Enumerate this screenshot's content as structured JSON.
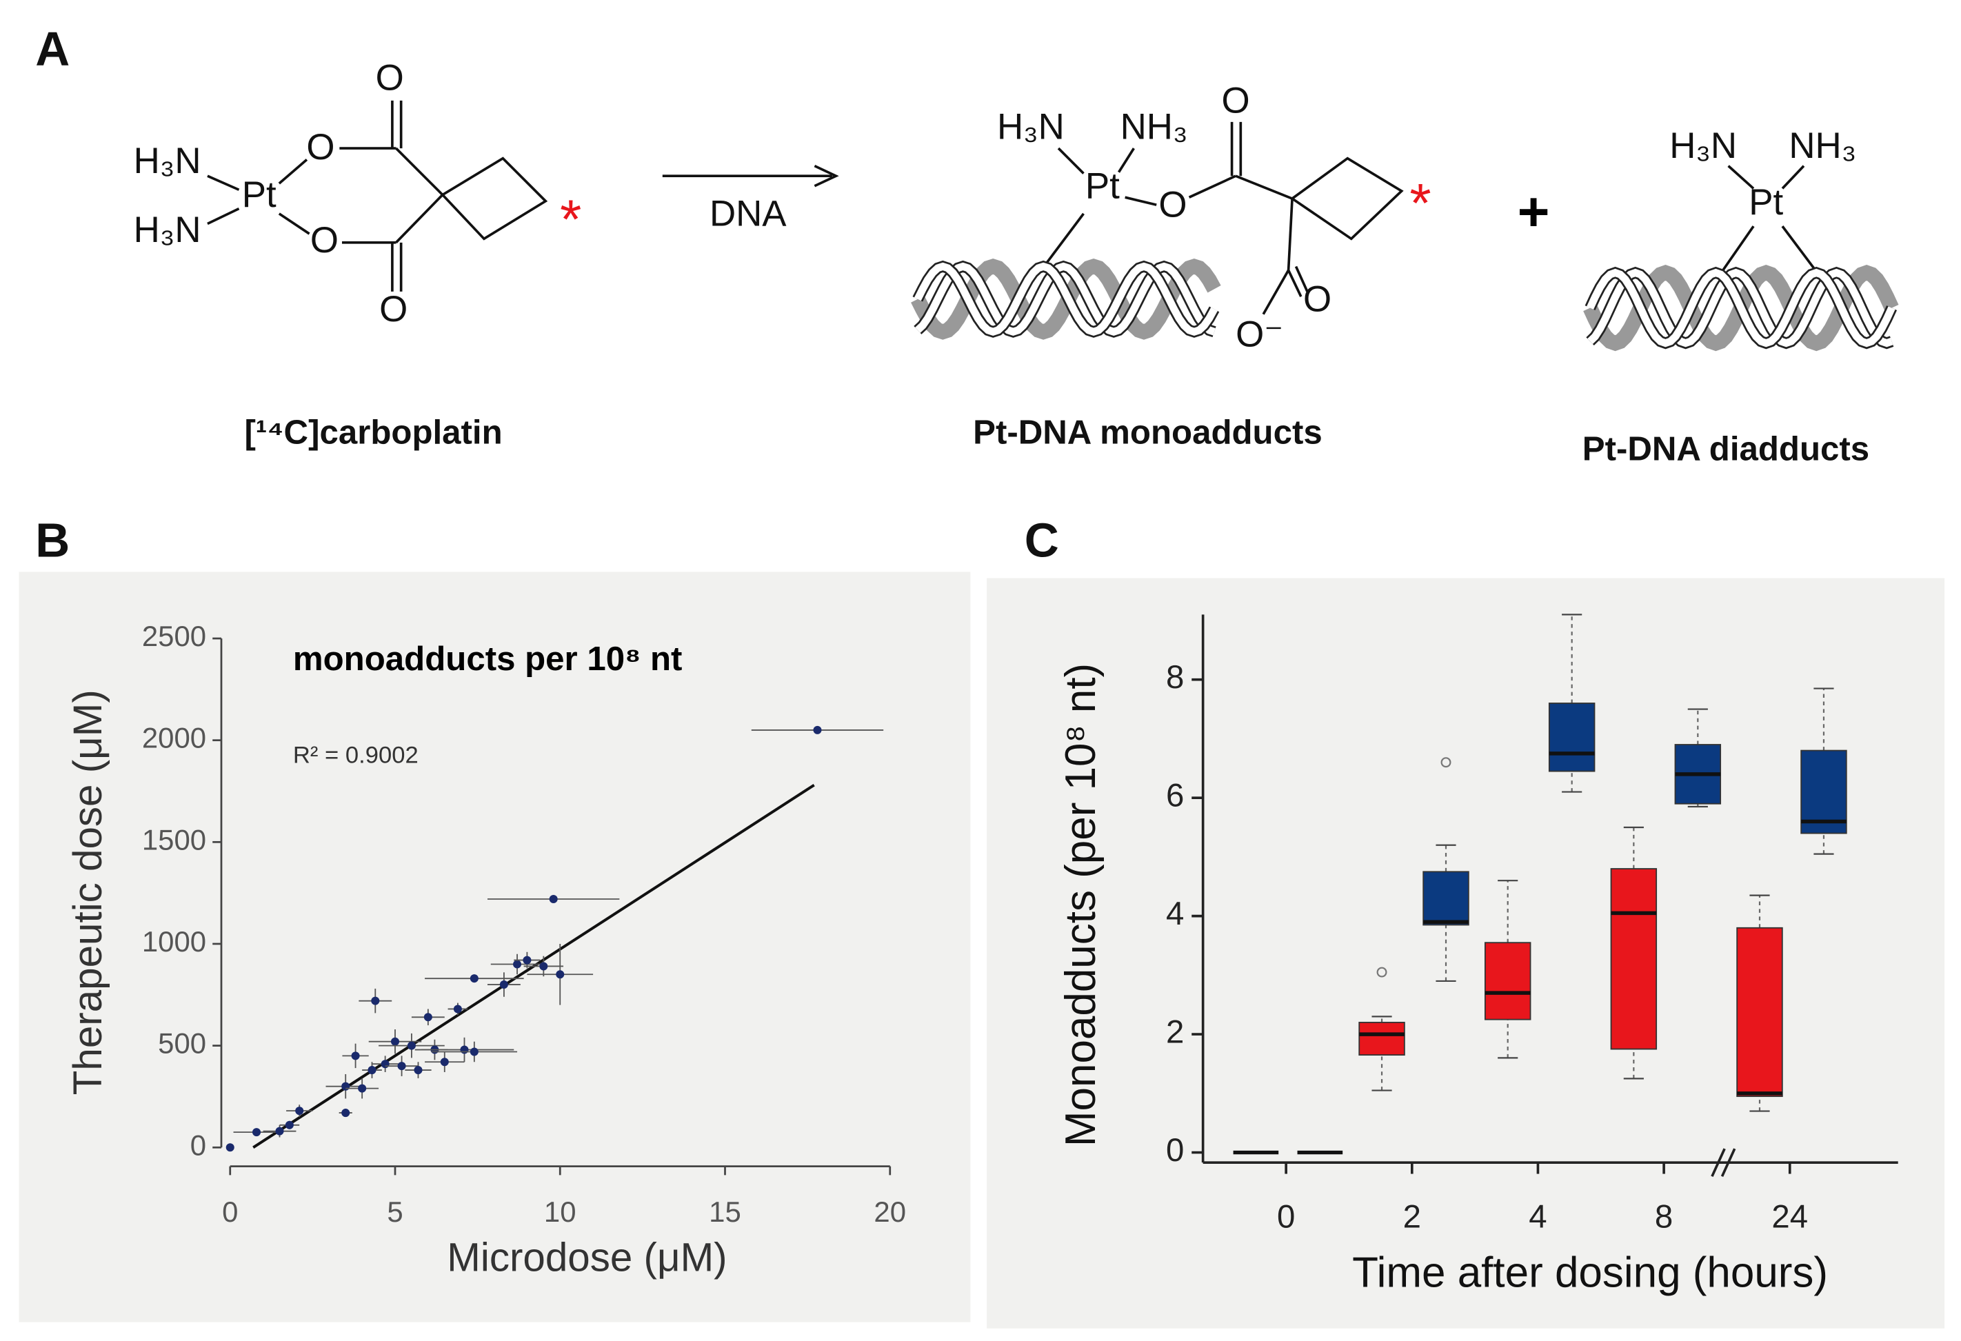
{
  "panels": {
    "a": "A",
    "b": "B",
    "c": "C"
  },
  "scheme": {
    "reactant": {
      "atoms": [
        "H₃N",
        "Pt",
        "H₃N",
        "O",
        "O",
        "O",
        "O",
        "*"
      ],
      "caption": "[¹⁴C]carboplatin"
    },
    "arrow_label": "DNA",
    "monoadduct": {
      "atoms": [
        "H₃N",
        "NH₃",
        "Pt",
        "O",
        "O",
        "O",
        "O⁻",
        "*"
      ],
      "caption": "Pt-DNA monoadducts"
    },
    "plus": "+",
    "diadduct": {
      "atoms": [
        "H₃N",
        "NH₃",
        "Pt"
      ],
      "caption": "Pt-DNA diadducts"
    }
  },
  "chart_data": [
    {
      "type": "scatter",
      "title": "monoadducts per 10⁸ nt",
      "annotation": "R² = 0.9002",
      "x_label": "Microdose (μM)",
      "y_label": "Therapeutic dose (μM)",
      "xlim": [
        0,
        20
      ],
      "xticks": [
        0,
        5,
        10,
        15,
        20
      ],
      "ylim": [
        0,
        2500
      ],
      "yticks": [
        0,
        500,
        1000,
        1500,
        2000,
        2500
      ],
      "series": [
        {
          "color": "#1a2a6c",
          "x": [
            0,
            0.8,
            1.5,
            1.8,
            2.1,
            3.5,
            3.5,
            3.8,
            4.0,
            4.3,
            4.4,
            4.7,
            5.0,
            5.2,
            5.5,
            5.7,
            6.0,
            6.2,
            6.5,
            6.9,
            7.1,
            7.4,
            7.4,
            8.3,
            8.7,
            9.0,
            9.5,
            10.0,
            9.8,
            17.8
          ],
          "y": [
            0,
            75,
            80,
            110,
            180,
            170,
            300,
            450,
            290,
            380,
            720,
            410,
            520,
            400,
            500,
            380,
            640,
            480,
            420,
            680,
            480,
            470,
            830,
            800,
            900,
            920,
            890,
            850,
            1220,
            2050
          ],
          "xerr": [
            0,
            0.7,
            0.5,
            0.3,
            0.4,
            0.2,
            0.6,
            0.4,
            0.5,
            0.3,
            0.5,
            0.4,
            0.8,
            0.5,
            1.0,
            0.4,
            0.5,
            0.4,
            0.6,
            0.3,
            1.5,
            1.3,
            1.5,
            0.5,
            0.8,
            0.4,
            0.6,
            1.0,
            2.0,
            2.0
          ],
          "yerr": [
            0,
            0,
            30,
            20,
            30,
            20,
            60,
            60,
            50,
            40,
            60,
            40,
            60,
            50,
            60,
            40,
            40,
            50,
            50,
            30,
            60,
            50,
            0,
            60,
            50,
            40,
            50,
            150,
            0,
            0
          ]
        }
      ],
      "fit": {
        "x": [
          0.7,
          17.7
        ],
        "y": [
          0,
          1780
        ]
      }
    },
    {
      "type": "box",
      "x_label": "Time after dosing (hours)",
      "y_label": "Monoadducts (per 10⁸ nt)",
      "categories": [
        "0",
        "2",
        "4",
        "8",
        "24"
      ],
      "ylim": [
        0,
        9.1
      ],
      "yticks": [
        0,
        2,
        4,
        6,
        8
      ],
      "series": [
        {
          "color": "#e8161c",
          "min": [
            0,
            1.05,
            1.6,
            1.25,
            0.7
          ],
          "q1": [
            0,
            1.65,
            2.25,
            1.75,
            0.95
          ],
          "median": [
            0,
            2.0,
            2.7,
            4.05,
            1.0
          ],
          "q3": [
            0,
            2.2,
            3.55,
            4.8,
            3.8
          ],
          "max": [
            0,
            2.3,
            4.6,
            5.5,
            4.35
          ],
          "outliers": [
            [],
            [
              3.05
            ],
            [],
            [],
            []
          ]
        },
        {
          "color": "#0b3a80",
          "min": [
            0,
            2.9,
            6.1,
            5.85,
            5.05
          ],
          "q1": [
            0,
            3.85,
            6.45,
            5.9,
            5.4
          ],
          "median": [
            0,
            3.9,
            6.75,
            6.4,
            5.6
          ],
          "q3": [
            0,
            4.75,
            7.6,
            6.9,
            6.8
          ],
          "max": [
            0,
            5.2,
            9.1,
            7.5,
            7.85
          ],
          "outliers": [
            [],
            [
              6.6
            ],
            [],
            [],
            []
          ]
        }
      ]
    }
  ]
}
